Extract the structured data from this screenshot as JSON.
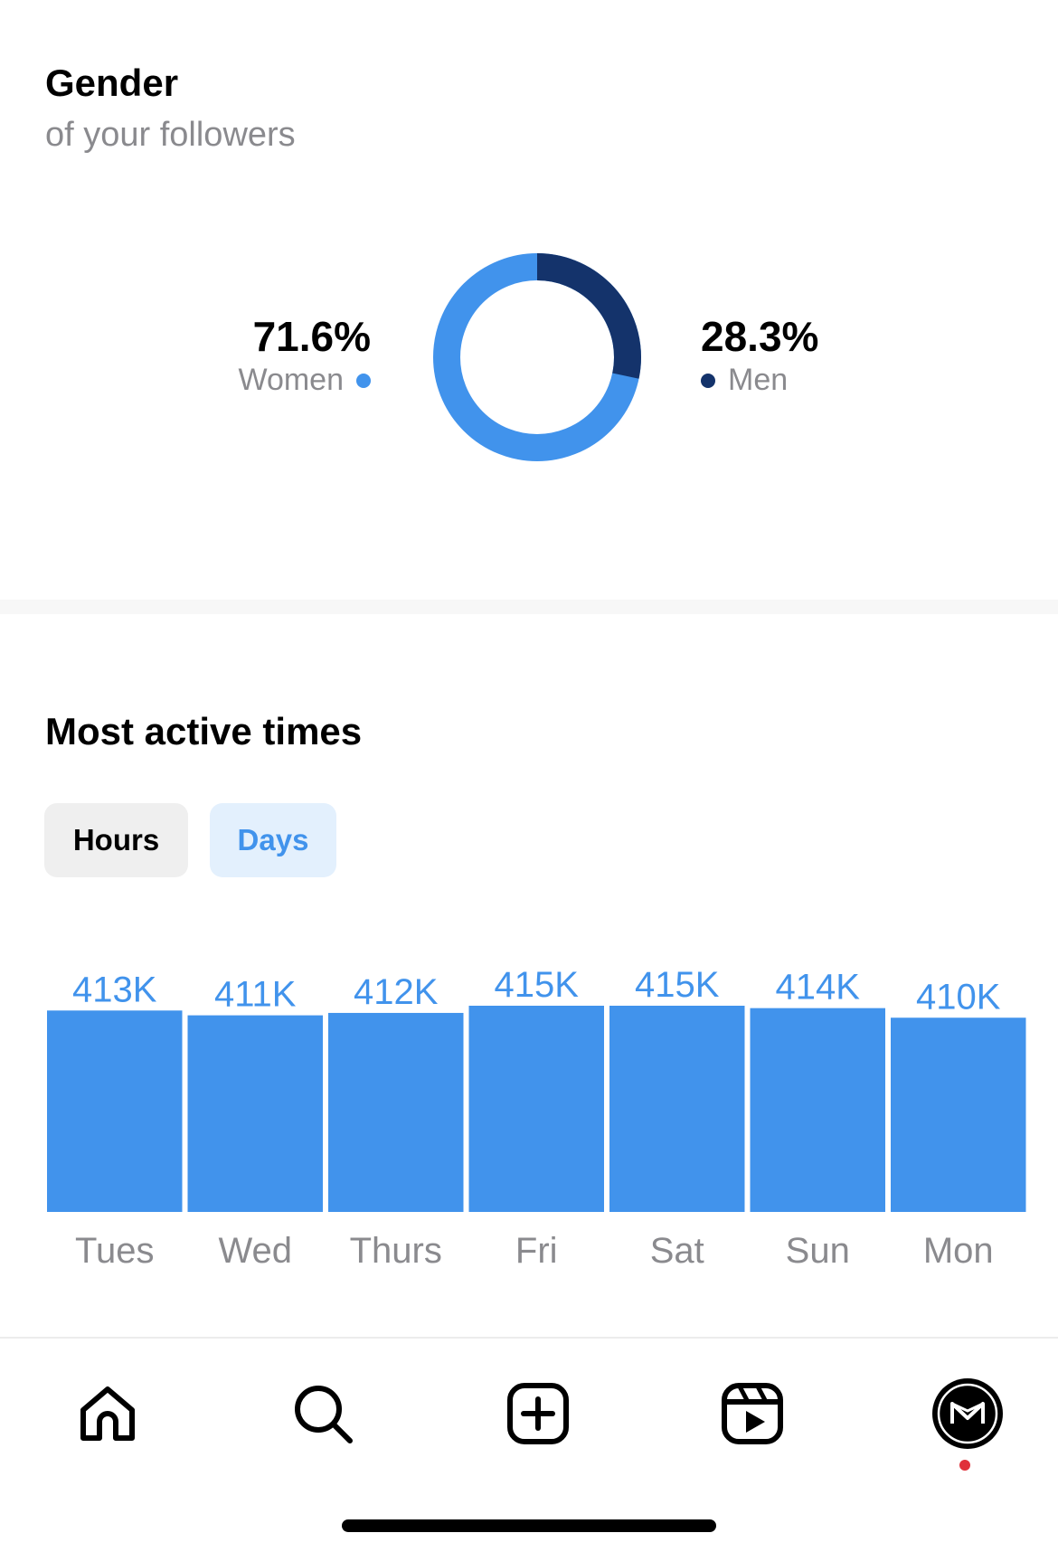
{
  "gender": {
    "title": "Gender",
    "subtitle": "of your followers",
    "women": {
      "percent_label": "71.6%",
      "label": "Women",
      "value": 71.6,
      "color": "#4193ec"
    },
    "men": {
      "percent_label": "28.3%",
      "label": "Men",
      "value": 28.3,
      "color": "#14336b"
    }
  },
  "active_times": {
    "title": "Most active times",
    "tabs": [
      {
        "label": "Hours",
        "selected": false
      },
      {
        "label": "Days",
        "selected": true
      }
    ]
  },
  "chart_data": {
    "type": "bar",
    "categories": [
      "Tues",
      "Wed",
      "Thurs",
      "Fri",
      "Sat",
      "Sun",
      "Mon"
    ],
    "values": [
      413,
      411,
      412,
      415,
      415,
      414,
      410
    ],
    "data_labels": [
      "413K",
      "411K",
      "412K",
      "415K",
      "415K",
      "414K",
      "410K"
    ],
    "bar_color": "#4193ec",
    "grid": false
  },
  "nav": {
    "items": [
      {
        "icon": "home-icon"
      },
      {
        "icon": "search-icon"
      },
      {
        "icon": "create-post-icon"
      },
      {
        "icon": "reels-icon"
      },
      {
        "icon": "profile-avatar"
      }
    ],
    "notification_dot_color": "#e0313a"
  }
}
